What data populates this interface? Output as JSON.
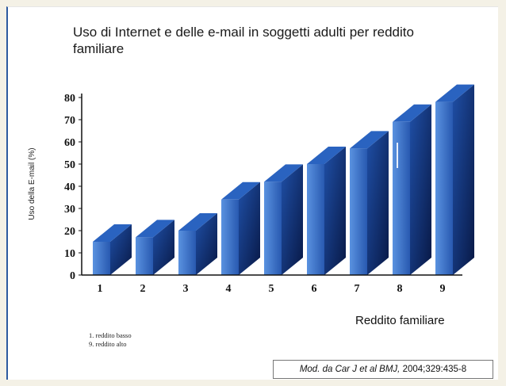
{
  "chart_data": {
    "type": "bar",
    "title_line1": "Uso di Internet e  delle e-mail in soggetti adulti per reddito",
    "title_line2": "familiare",
    "ylabel": "Uso della E-mail (%)",
    "xlabel": "Reddito familiare",
    "categories": [
      "1",
      "2",
      "3",
      "4",
      "5",
      "6",
      "7",
      "8",
      "9"
    ],
    "values": [
      15,
      17,
      20,
      34,
      42,
      50,
      57,
      69,
      78
    ],
    "yticks": [
      "0",
      "10",
      "20",
      "30",
      "40",
      "50",
      "60",
      "70",
      "80"
    ],
    "ylim": [
      0,
      80
    ],
    "grid": false,
    "legend": [
      "1.  reddito basso",
      "9.  reddito alto"
    ]
  },
  "citation": {
    "authors": "Mod. da Car J et al BMJ,",
    "ref": " 2004;329:435-8"
  },
  "colors": {
    "bar_front_light": "#4f86d6",
    "bar_front_dark": "#1e4a9a",
    "bar_side_light": "#2150a3",
    "bar_side_dark": "#0a1c4e",
    "bar_top": "#2a63c0"
  }
}
